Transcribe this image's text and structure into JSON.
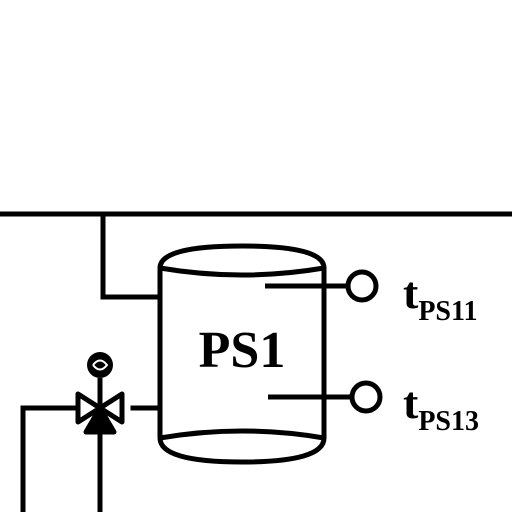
{
  "tank": {
    "label": "PS1"
  },
  "sensors": [
    {
      "main": "t",
      "sub": "PS11"
    },
    {
      "main": "t",
      "sub": "PS13"
    }
  ],
  "colors": {
    "line": "#000000",
    "background": "#ffffff"
  }
}
